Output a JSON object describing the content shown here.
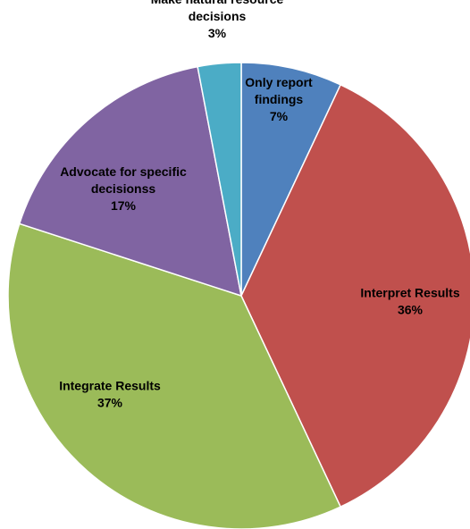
{
  "chart_data": {
    "type": "pie",
    "title": "",
    "start_angle_deg": 0,
    "direction": "clockwise",
    "slices": [
      {
        "label": [
          "Only report",
          "findings"
        ],
        "pct_label": "7%",
        "value": 7,
        "color": "#4f81bd"
      },
      {
        "label": [
          "Interpret Results"
        ],
        "pct_label": "36%",
        "value": 36,
        "color": "#c0504d"
      },
      {
        "label": [
          "Integrate Results"
        ],
        "pct_label": "37%",
        "value": 37,
        "color": "#9bbb59"
      },
      {
        "label": [
          "Advocate for specific",
          "decisionss"
        ],
        "pct_label": "17%",
        "value": 17,
        "color": "#8064a2"
      },
      {
        "label": [
          "Make natural resource",
          "decisions"
        ],
        "pct_label": "3%",
        "value": 3,
        "color": "#4bacc6"
      }
    ]
  }
}
